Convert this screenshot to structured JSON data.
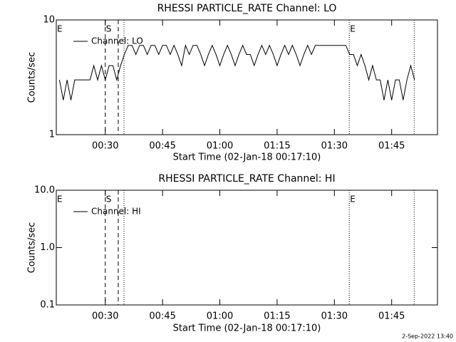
{
  "chart_data": [
    {
      "type": "line",
      "title": "RHESSI PARTICLE_RATE Channel: LO",
      "x_label": "Start Time (02-Jan-18 00:17:10)",
      "y_label": "Counts/sec",
      "log_y": true,
      "legend": "upper left",
      "color": "#000000",
      "xlim": [
        17.17,
        117
      ],
      "xticks": [
        {
          "value": 30,
          "label": "00:30"
        },
        {
          "value": 45,
          "label": "00:45"
        },
        {
          "value": 60,
          "label": "01:00"
        },
        {
          "value": 75,
          "label": "01:15"
        },
        {
          "value": 90,
          "label": "01:30"
        },
        {
          "value": 105,
          "label": "01:45"
        }
      ],
      "ylim": [
        1,
        10
      ],
      "yticks": [
        1,
        10
      ],
      "vlines": [
        {
          "x": 30,
          "style": "dashed"
        },
        {
          "x": 33.4,
          "style": "dashed"
        },
        {
          "x": 34.9,
          "style": "dotted"
        },
        {
          "x": 93.9,
          "style": "dotted"
        },
        {
          "x": 110.9,
          "style": "dotted"
        }
      ],
      "annotations": [
        {
          "text": "E",
          "x": 17.17
        },
        {
          "text": "S",
          "x": 30
        },
        {
          "text": "E",
          "x": 93.9
        }
      ],
      "x": [
        18,
        19,
        20,
        21,
        22,
        23,
        24,
        25,
        26,
        27,
        28,
        29,
        30,
        31,
        32,
        33,
        34,
        35,
        36,
        37,
        38,
        39,
        40,
        41,
        42,
        43,
        44,
        45,
        46,
        47,
        48,
        49,
        50,
        51,
        52,
        53,
        54,
        55,
        56,
        57,
        58,
        59,
        60,
        61,
        62,
        63,
        64,
        65,
        66,
        67,
        68,
        69,
        70,
        71,
        72,
        73,
        74,
        75,
        76,
        77,
        78,
        79,
        80,
        81,
        82,
        83,
        84,
        85,
        86,
        87,
        88,
        89,
        90,
        91,
        92,
        93,
        94,
        95,
        96,
        97,
        98,
        99,
        100,
        101,
        102,
        103,
        104,
        105,
        106,
        107,
        108,
        109,
        110,
        111
      ],
      "series": [
        {
          "name": "Channel: LO",
          "color": "#000000",
          "values": [
            3,
            2,
            3,
            2,
            3,
            3,
            3,
            3,
            3,
            4,
            3,
            4,
            3,
            4,
            4,
            3,
            4,
            5,
            6,
            6,
            5,
            6,
            6,
            5,
            6,
            6,
            5,
            6,
            6,
            5,
            6,
            5,
            4,
            6,
            5,
            6,
            6,
            5,
            4,
            5,
            6,
            5,
            4,
            5,
            6,
            5,
            4,
            5,
            6,
            5,
            5,
            4,
            5,
            6,
            5,
            6,
            5,
            4,
            5,
            6,
            5,
            6,
            5,
            4,
            5,
            6,
            5,
            6,
            6,
            6,
            6,
            6,
            6,
            6,
            6,
            6,
            5,
            5,
            4,
            5,
            4,
            3,
            4,
            3,
            3,
            2,
            3,
            2,
            3,
            3,
            2,
            3,
            4,
            3
          ]
        }
      ]
    },
    {
      "type": "line",
      "title": "RHESSI PARTICLE_RATE Channel: HI",
      "x_label": "Start Time (02-Jan-18 00:17:10)",
      "y_label": "Counts/sec",
      "log_y": true,
      "legend": "upper left",
      "color": "#000000",
      "xlim": [
        17.17,
        117
      ],
      "xticks": [
        {
          "value": 30,
          "label": "00:30"
        },
        {
          "value": 45,
          "label": "00:45"
        },
        {
          "value": 60,
          "label": "01:00"
        },
        {
          "value": 75,
          "label": "01:15"
        },
        {
          "value": 90,
          "label": "01:30"
        },
        {
          "value": 105,
          "label": "01:45"
        }
      ],
      "ylim": [
        0.1,
        10
      ],
      "yticks": [
        0.1,
        {
          "value": 1,
          "label": "1.0"
        },
        {
          "value": 10,
          "label": "10.0"
        }
      ],
      "vlines": [
        {
          "x": 30,
          "style": "dashed"
        },
        {
          "x": 33.4,
          "style": "dashed"
        },
        {
          "x": 34.9,
          "style": "dotted"
        },
        {
          "x": 93.9,
          "style": "dotted"
        },
        {
          "x": 110.9,
          "style": "dotted"
        }
      ],
      "annotations": [
        {
          "text": "E",
          "x": 17.17
        },
        {
          "text": "S",
          "x": 30
        },
        {
          "text": "E",
          "x": 93.9
        }
      ],
      "x": [],
      "series": [
        {
          "name": "Channel: HI",
          "color": "#000000",
          "values": []
        }
      ]
    }
  ],
  "footer": "2-Sep-2022 13:40"
}
